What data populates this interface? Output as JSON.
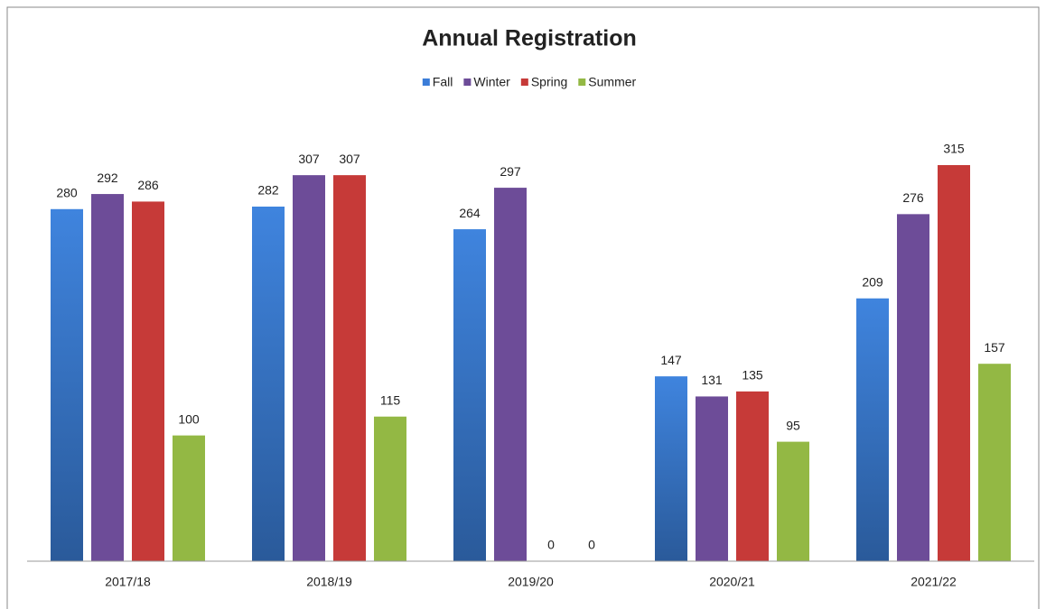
{
  "chart_data": {
    "type": "bar",
    "title": "Annual Registration",
    "categories": [
      "2017/18",
      "2018/19",
      "2019/20",
      "2020/21",
      "2021/22"
    ],
    "series": [
      {
        "name": "Fall",
        "color": "#3b7dd8",
        "values": [
          280,
          282,
          264,
          147,
          209
        ]
      },
      {
        "name": "Winter",
        "color": "#6d4c98",
        "values": [
          292,
          307,
          297,
          131,
          276
        ]
      },
      {
        "name": "Spring",
        "color": "#c63a38",
        "values": [
          286,
          307,
          0,
          135,
          315
        ]
      },
      {
        "name": "Summer",
        "color": "#93b844",
        "values": [
          100,
          115,
          0,
          95,
          157
        ]
      }
    ],
    "legend": "top"
  }
}
